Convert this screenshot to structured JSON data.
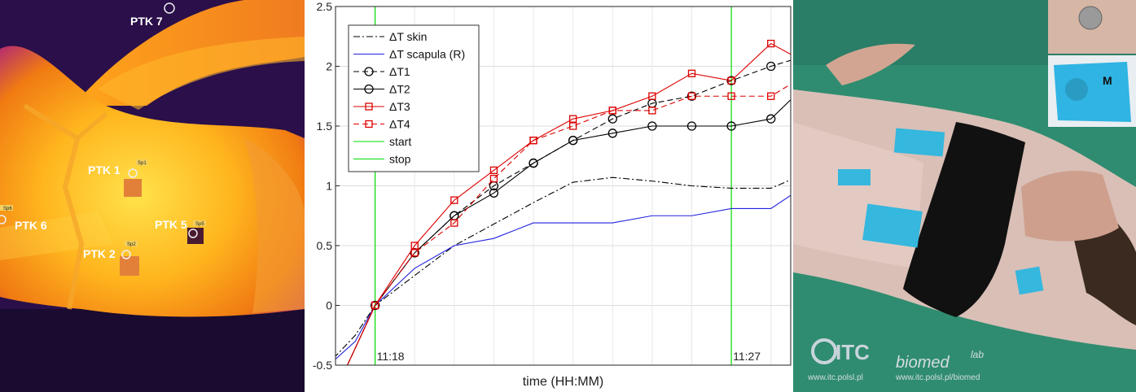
{
  "thermal": {
    "labels": [
      {
        "name": "PTK 7",
        "spot": ""
      },
      {
        "name": "PTK 1",
        "spot": "Sp1"
      },
      {
        "name": "PTK 6",
        "spot": "Sp6"
      },
      {
        "name": "PTK 5",
        "spot": "Sp5"
      },
      {
        "name": "PTK 2",
        "spot": "Sp2"
      }
    ]
  },
  "chart_data": {
    "type": "line",
    "xlabel": "time (HH:MM)",
    "ylabel": "",
    "ylim": [
      -0.5,
      2.5
    ],
    "yticks": [
      "-0.5",
      "0",
      "0.5",
      "1",
      "1.5",
      "2",
      "2.5"
    ],
    "xlim": [
      -1,
      10.5
    ],
    "grid": true,
    "legend_position": "top-left",
    "vertical_lines": [
      {
        "name": "start",
        "x": 0,
        "label": "11:18",
        "color": "#00dd00"
      },
      {
        "name": "stop",
        "x": 9,
        "label": "11:27",
        "color": "#00dd00"
      }
    ],
    "series": [
      {
        "name": "ΔT skin",
        "color": "#000000",
        "style": "dashdot",
        "marker": "none",
        "x": [
          -1.5,
          -0.5,
          0,
          1,
          2,
          3,
          4,
          5,
          6,
          7,
          8,
          9,
          10,
          10.5
        ],
        "y": [
          -0.6,
          -0.25,
          0,
          0.25,
          0.5,
          0.68,
          0.86,
          1.03,
          1.07,
          1.04,
          1.0,
          0.98,
          0.98,
          1.05
        ]
      },
      {
        "name": "ΔT scapula (R)",
        "color": "#2222dd",
        "style": "solid",
        "marker": "none",
        "x": [
          -1.5,
          -0.5,
          0,
          1,
          2,
          3,
          4,
          5,
          6,
          7,
          8,
          9,
          10,
          10.5
        ],
        "y": [
          -0.6,
          -0.3,
          0,
          0.31,
          0.5,
          0.56,
          0.69,
          0.69,
          0.69,
          0.75,
          0.75,
          0.81,
          0.81,
          0.92
        ]
      },
      {
        "name": "ΔT1",
        "color": "#000000",
        "style": "dashed",
        "marker": "circle",
        "x": [
          -0.7,
          0,
          1,
          2,
          3,
          4,
          5,
          6,
          7,
          8,
          9,
          10,
          10.5
        ],
        "y": [
          -0.5,
          0,
          0.44,
          0.75,
          1.0,
          1.19,
          1.38,
          1.56,
          1.69,
          1.75,
          1.88,
          2.0,
          2.05
        ]
      },
      {
        "name": "ΔT2",
        "color": "#000000",
        "style": "solid",
        "marker": "circle",
        "x": [
          -0.7,
          0,
          1,
          2,
          3,
          4,
          5,
          6,
          7,
          8,
          9,
          10,
          10.5
        ],
        "y": [
          -0.5,
          0,
          0.44,
          0.75,
          0.94,
          1.19,
          1.38,
          1.44,
          1.5,
          1.5,
          1.5,
          1.56,
          1.72
        ]
      },
      {
        "name": "ΔT3",
        "color": "#dd0000",
        "style": "solid",
        "marker": "square",
        "x": [
          -0.7,
          0,
          1,
          2,
          3,
          4,
          5,
          6,
          7,
          8,
          9,
          10,
          10.5
        ],
        "y": [
          -0.5,
          0,
          0.5,
          0.88,
          1.13,
          1.38,
          1.56,
          1.63,
          1.75,
          1.94,
          1.88,
          2.19,
          2.1
        ]
      },
      {
        "name": "ΔT4",
        "color": "#dd0000",
        "style": "dashed",
        "marker": "square",
        "x": [
          -0.7,
          0,
          1,
          2,
          3,
          4,
          5,
          6,
          7,
          8,
          9,
          10,
          10.5
        ],
        "y": [
          -0.5,
          0,
          0.44,
          0.69,
          1.06,
          1.38,
          1.5,
          1.63,
          1.63,
          1.75,
          1.75,
          1.75,
          1.85
        ]
      }
    ]
  },
  "photo": {
    "m_label": "M",
    "logo_itc": "ITC",
    "logo_itc_url": "www.itc.polsl.pl",
    "logo_biomed": "biomed",
    "logo_biomed_lab": "lab",
    "logo_biomed_url": "www.itc.polsl.pl/biomed"
  }
}
